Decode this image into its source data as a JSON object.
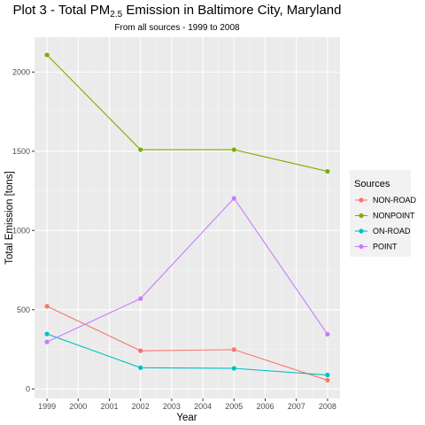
{
  "chart_data": {
    "type": "line",
    "title_pre": "Plot 3 - Total PM",
    "title_sub": "2.5",
    "title_post": " Emission in Baltimore City, Maryland",
    "subtitle": "From all sources - 1999 to 2008",
    "xlabel": "Year",
    "ylabel": "Total Emission [tons]",
    "xlim": [
      1998.6,
      2008.4
    ],
    "ylim": [
      -60,
      2220
    ],
    "x_ticks": [
      1999,
      2000,
      2001,
      2002,
      2003,
      2004,
      2005,
      2006,
      2007,
      2008
    ],
    "y_ticks": [
      0,
      500,
      1000,
      1500,
      2000
    ],
    "grid": true,
    "legend_position": "right",
    "legend_title": "Sources",
    "x": [
      1999,
      2002,
      2005,
      2008
    ],
    "series": [
      {
        "name": "NON-ROAD",
        "color": "#F8766D",
        "values": [
          522,
          241,
          248,
          55
        ]
      },
      {
        "name": "NONPOINT",
        "color": "#7CAE00",
        "values": [
          2108,
          1510,
          1510,
          1373
        ]
      },
      {
        "name": "ON-ROAD",
        "color": "#00BFC4",
        "values": [
          347,
          134,
          130,
          88
        ]
      },
      {
        "name": "POINT",
        "color": "#C77CFF",
        "values": [
          297,
          570,
          1203,
          345
        ]
      }
    ]
  }
}
